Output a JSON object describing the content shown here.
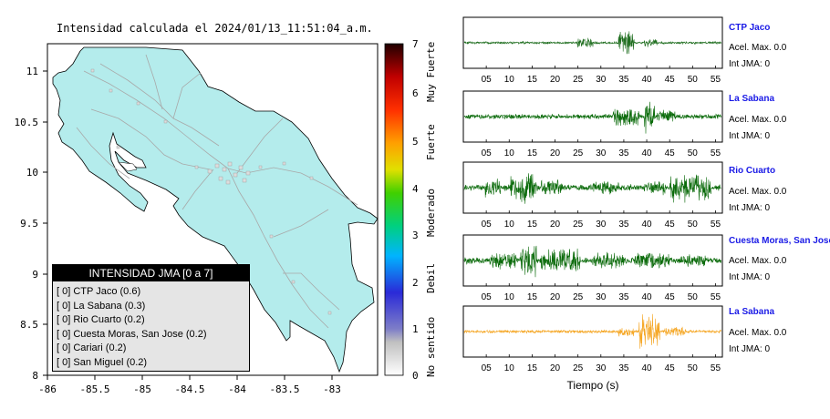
{
  "map": {
    "title": "Intensidad calculada el 2024/01/13_11:51:04_a.m.",
    "xticks": [
      "-86",
      "-85.5",
      "-85",
      "-84.5",
      "-84",
      "-83.5",
      "-83"
    ],
    "yticks": [
      "11",
      "10.5",
      "10",
      "9.5",
      "9",
      "8.5",
      "8"
    ],
    "land_color": "#b4ecec"
  },
  "colorbar": {
    "ticks": [
      "7",
      "6",
      "5",
      "4",
      "3",
      "2",
      "1",
      "0"
    ],
    "categories": [
      "Muy Fuerte",
      "Fuerte",
      "Moderado",
      "Debil",
      "No sentido"
    ]
  },
  "legend": {
    "title": "INTENSIDAD JMA [0 a 7]",
    "items": [
      {
        "level": "[ 0]",
        "label": "CTP Jaco (0.6)"
      },
      {
        "level": "[ 0]",
        "label": "La Sabana (0.3)"
      },
      {
        "level": "[ 0]",
        "label": "Rio Cuarto (0.2)"
      },
      {
        "level": "[ 0]",
        "label": "Cuesta Moras, San Jose (0.2)"
      },
      {
        "level": "[ 0]",
        "label": "Cariari (0.2)"
      },
      {
        "level": "[ 0]",
        "label": "San Miguel (0.2)"
      }
    ]
  },
  "waveforms": {
    "xticks": [
      "05",
      "10",
      "15",
      "20",
      "25",
      "30",
      "35",
      "40",
      "45",
      "50",
      "55"
    ],
    "xlabel": "Tiempo (s)",
    "panels": [
      {
        "station": "CTP Jaco",
        "accel": "Acel. Max. 0.0",
        "int": "Int JMA: 0",
        "color": "#1f6e1f"
      },
      {
        "station": "La Sabana",
        "accel": "Acel. Max. 0.0",
        "int": "Int JMA: 0",
        "color": "#0b6b0b"
      },
      {
        "station": "Rio Cuarto",
        "accel": "Acel. Max. 0.0",
        "int": "Int JMA: 0",
        "color": "#0b6b0b"
      },
      {
        "station": "Cuesta Moras, San Jose",
        "accel": "Acel. Max. 0.0",
        "int": "Int JMA: 0",
        "color": "#0b6b0b"
      },
      {
        "station": "La Sabana",
        "accel": "Acel. Max. 0.0",
        "int": "Int JMA: 0",
        "color": "#f5a623"
      }
    ]
  }
}
